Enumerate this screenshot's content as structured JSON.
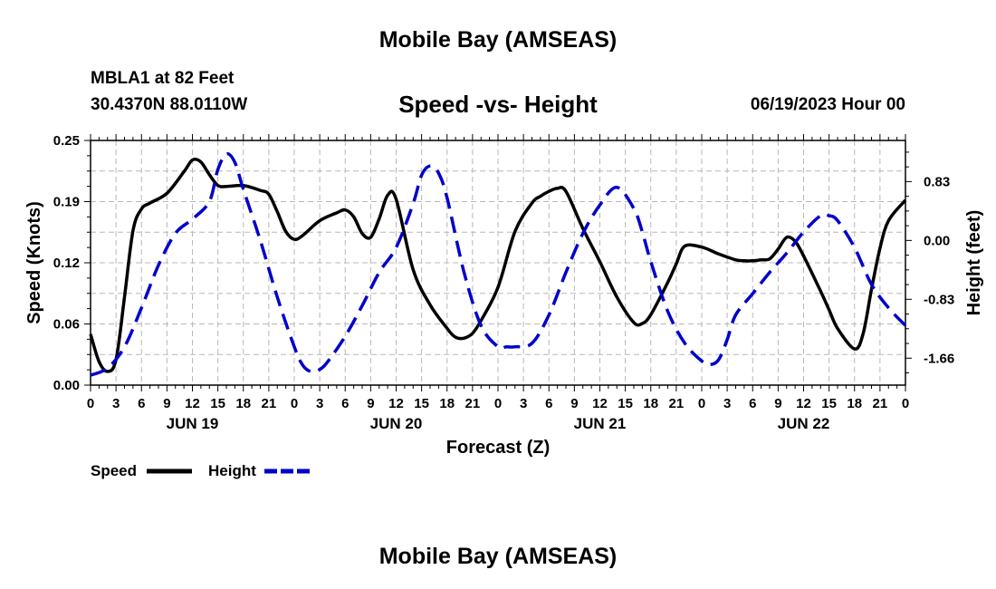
{
  "header": {
    "title": "Mobile Bay (AMSEAS)",
    "station": "MBLA1 at 82 Feet",
    "coordinates": "30.4370N  88.0110W",
    "subtitle": "Speed -vs- Height",
    "datetime": "06/19/2023 Hour 00"
  },
  "footer": {
    "title": "Mobile Bay (AMSEAS)"
  },
  "chart_data": {
    "type": "line",
    "xlabel": "Forecast (Z)",
    "ylabel": "Speed (Knots)",
    "y2label": "Height (feet)",
    "xlim": [
      0,
      96
    ],
    "ylim": [
      0,
      0.25
    ],
    "y2lim": [
      -2.04,
      1.41
    ],
    "grid": true,
    "legend_position": "bottom-left",
    "x_tick_labels": [
      "0",
      "3",
      "6",
      "9",
      "12",
      "15",
      "18",
      "21",
      "0",
      "3",
      "6",
      "9",
      "12",
      "15",
      "18",
      "21",
      "0",
      "3",
      "6",
      "9",
      "12",
      "15",
      "18",
      "21",
      "0",
      "3",
      "6",
      "9",
      "12",
      "15",
      "18",
      "21",
      "0"
    ],
    "day_labels": [
      {
        "label": "JUN 19",
        "x": 12
      },
      {
        "label": "JUN 20",
        "x": 36
      },
      {
        "label": "JUN 21",
        "x": 60
      },
      {
        "label": "JUN 22",
        "x": 84
      }
    ],
    "y_ticks": [
      "0.00",
      "0.06",
      "0.12",
      "0.19",
      "0.25"
    ],
    "y_tick_values": [
      0,
      0.0625,
      0.125,
      0.1875,
      0.25
    ],
    "y2_ticks": [
      "-1.66",
      "-0.83",
      "0.00",
      "0.83"
    ],
    "y2_tick_values": [
      -1.66,
      -0.83,
      0.0,
      0.83
    ],
    "series": [
      {
        "name": "Speed",
        "axis": "left",
        "color": "#000000",
        "dash": "solid",
        "x": [
          0,
          1,
          2,
          3,
          4,
          5,
          6,
          7,
          9,
          11,
          12,
          13,
          14,
          15,
          16,
          18,
          20,
          21,
          22,
          23,
          24,
          25,
          27,
          29,
          30,
          31,
          32,
          33,
          34,
          35,
          36,
          38,
          40,
          42,
          43,
          44,
          45,
          46,
          48,
          50,
          52,
          53,
          54,
          55,
          56,
          58,
          60,
          62,
          64,
          65,
          66,
          68,
          69,
          70,
          72,
          74,
          76,
          77,
          78,
          79,
          80,
          81,
          82,
          83,
          84,
          86,
          87,
          88,
          90,
          91,
          92,
          93,
          94,
          96
        ],
        "values": [
          0.052,
          0.024,
          0.014,
          0.026,
          0.09,
          0.158,
          0.18,
          0.186,
          0.196,
          0.218,
          0.23,
          0.228,
          0.215,
          0.204,
          0.203,
          0.204,
          0.199,
          0.195,
          0.177,
          0.157,
          0.149,
          0.153,
          0.168,
          0.176,
          0.179,
          0.172,
          0.155,
          0.151,
          0.17,
          0.194,
          0.19,
          0.118,
          0.082,
          0.058,
          0.049,
          0.048,
          0.053,
          0.066,
          0.1,
          0.157,
          0.186,
          0.193,
          0.198,
          0.201,
          0.198,
          0.16,
          0.126,
          0.09,
          0.064,
          0.063,
          0.072,
          0.105,
          0.124,
          0.142,
          0.141,
          0.134,
          0.128,
          0.127,
          0.127,
          0.128,
          0.129,
          0.139,
          0.151,
          0.147,
          0.132,
          0.096,
          0.077,
          0.058,
          0.037,
          0.052,
          0.098,
          0.14,
          0.168,
          0.189
        ]
      },
      {
        "name": "Height",
        "axis": "right",
        "color": "#0000cc",
        "dash": "dashed",
        "x": [
          0,
          2,
          4,
          6,
          8,
          10,
          12,
          14,
          15,
          16,
          17,
          18,
          20,
          22,
          24,
          25,
          26,
          27,
          28,
          30,
          32,
          34,
          36,
          38,
          39,
          40,
          41,
          42,
          44,
          46,
          48,
          49,
          50,
          52,
          54,
          56,
          58,
          60,
          62,
          64,
          65,
          66,
          68,
          70,
          72,
          73,
          74,
          75,
          76,
          78,
          80,
          82,
          84,
          86,
          87,
          88,
          90,
          92,
          94,
          96
        ],
        "values": [
          -1.9,
          -1.8,
          -1.5,
          -0.95,
          -0.35,
          0.1,
          0.3,
          0.55,
          1.0,
          1.22,
          1.1,
          0.72,
          0.0,
          -0.8,
          -1.5,
          -1.76,
          -1.85,
          -1.82,
          -1.7,
          -1.35,
          -0.92,
          -0.45,
          -0.1,
          0.52,
          0.92,
          1.05,
          0.95,
          0.6,
          -0.45,
          -1.2,
          -1.5,
          -1.5,
          -1.5,
          -1.45,
          -1.05,
          -0.45,
          0.1,
          0.5,
          0.75,
          0.45,
          0.12,
          -0.3,
          -1.0,
          -1.45,
          -1.7,
          -1.75,
          -1.68,
          -1.4,
          -1.05,
          -0.75,
          -0.45,
          -0.18,
          0.12,
          0.35,
          0.35,
          0.28,
          -0.1,
          -0.62,
          -0.95,
          -1.2
        ]
      }
    ]
  }
}
